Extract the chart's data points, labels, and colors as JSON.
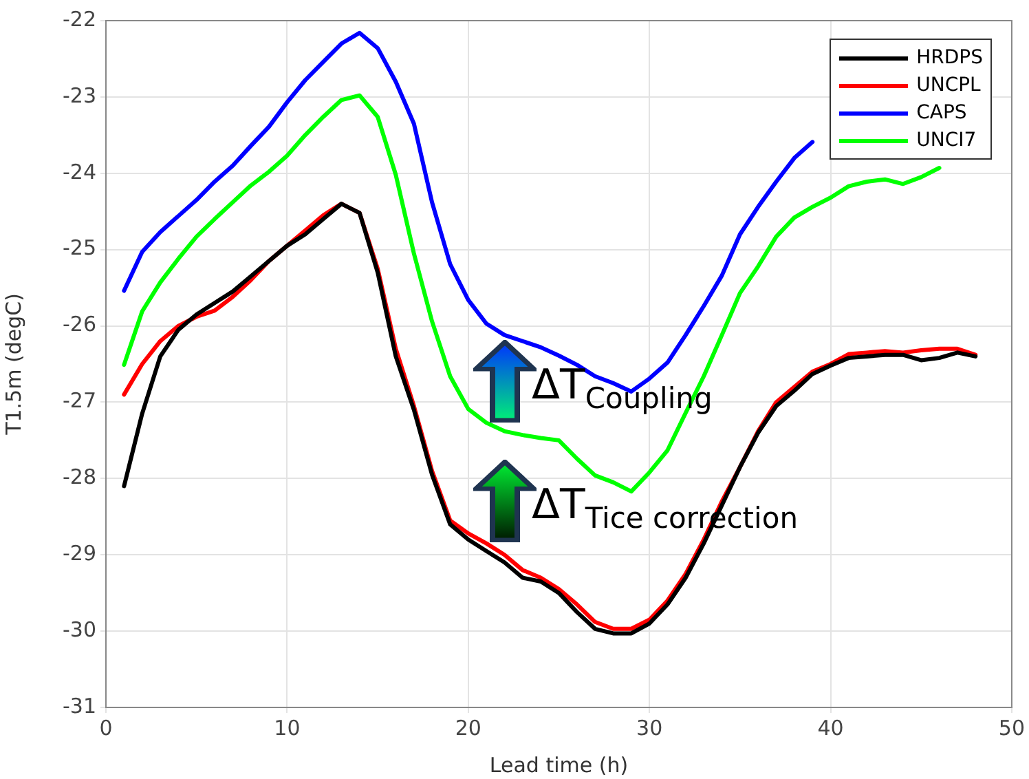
{
  "chart_data": {
    "type": "line",
    "xlabel": "Lead time (h)",
    "ylabel": "T1.5m (degC)",
    "x": [
      1,
      2,
      3,
      4,
      5,
      6,
      7,
      8,
      9,
      10,
      11,
      12,
      13,
      14,
      15,
      16,
      17,
      18,
      19,
      20,
      21,
      22,
      23,
      24,
      25,
      26,
      27,
      28,
      29,
      30,
      31,
      32,
      33,
      34,
      35,
      36,
      37,
      38,
      39,
      40,
      41,
      42,
      43,
      44,
      45,
      46,
      47,
      48
    ],
    "series": [
      {
        "name": "HRDPS",
        "color": "#000000",
        "values": [
          -28.1,
          -27.15,
          -26.4,
          -26.05,
          -25.85,
          -25.7,
          -25.55,
          -25.35,
          -25.15,
          -24.95,
          -24.8,
          -24.6,
          -24.4,
          -24.52,
          -25.3,
          -26.4,
          -27.1,
          -27.95,
          -28.6,
          -28.8,
          -28.95,
          -29.1,
          -29.3,
          -29.35,
          -29.5,
          -29.75,
          -29.97,
          -30.03,
          -30.03,
          -29.9,
          -29.65,
          -29.3,
          -28.85,
          -28.35,
          -27.85,
          -27.4,
          -27.05,
          -26.85,
          -26.63,
          -26.52,
          -26.42,
          -26.4,
          -26.38,
          -26.38,
          -26.45,
          -26.42,
          -26.35,
          -26.4
        ]
      },
      {
        "name": "UNCPL",
        "color": "#ff0000",
        "values": [
          -26.9,
          -26.5,
          -26.2,
          -26.0,
          -25.88,
          -25.8,
          -25.62,
          -25.4,
          -25.15,
          -24.95,
          -24.75,
          -24.55,
          -24.4,
          -24.52,
          -25.25,
          -26.3,
          -27.05,
          -27.9,
          -28.55,
          -28.72,
          -28.85,
          -29.0,
          -29.2,
          -29.3,
          -29.45,
          -29.65,
          -29.88,
          -29.97,
          -29.97,
          -29.85,
          -29.6,
          -29.25,
          -28.8,
          -28.3,
          -27.85,
          -27.38,
          -27.0,
          -26.8,
          -26.6,
          -26.5,
          -26.37,
          -26.35,
          -26.33,
          -26.35,
          -26.32,
          -26.3,
          -26.3,
          -26.38
        ]
      },
      {
        "name": "CAPS",
        "color": "#0000ff",
        "values": [
          -25.54,
          -25.03,
          -24.77,
          -24.56,
          -24.35,
          -24.11,
          -23.9,
          -23.64,
          -23.39,
          -23.07,
          -22.78,
          -22.54,
          -22.3,
          -22.16,
          -22.36,
          -22.8,
          -23.35,
          -24.38,
          -25.19,
          -25.66,
          -25.97,
          -26.12,
          -26.2,
          -26.28,
          -26.39,
          -26.51,
          -26.66,
          -26.75,
          -26.86,
          -26.69,
          -26.48,
          -26.12,
          -25.74,
          -25.34,
          -24.8,
          -24.44,
          -24.11,
          -23.8,
          -23.59,
          null,
          null,
          null,
          null,
          null,
          null,
          null,
          null,
          null
        ]
      },
      {
        "name": "UNCI7",
        "color": "#00ff00",
        "values": [
          -26.51,
          -25.81,
          -25.43,
          -25.12,
          -24.83,
          -24.6,
          -24.38,
          -24.16,
          -23.98,
          -23.77,
          -23.5,
          -23.26,
          -23.04,
          -22.98,
          -23.26,
          -24.02,
          -25.05,
          -25.94,
          -26.66,
          -27.09,
          -27.27,
          -27.38,
          -27.43,
          -27.47,
          -27.5,
          -27.74,
          -27.96,
          -28.05,
          -28.17,
          -27.92,
          -27.63,
          -27.14,
          -26.66,
          -26.12,
          -25.57,
          -25.22,
          -24.83,
          -24.58,
          -24.44,
          -24.32,
          -24.17,
          -24.11,
          -24.08,
          -24.14,
          -24.05,
          -23.93,
          null,
          null
        ]
      }
    ],
    "xlim": [
      0,
      50
    ],
    "xticks": [
      0,
      10,
      20,
      30,
      40,
      50
    ],
    "ylim": [
      -31,
      -22
    ],
    "yticks": [
      -31,
      -30,
      -29,
      -28,
      -27,
      -26,
      -25,
      -24,
      -23,
      -22
    ],
    "grid": true,
    "legend": "top right",
    "marker": "none",
    "line_style": "solid",
    "annotations": [
      "ΔT$_{Coupling}$",
      "ΔT$_{Tice correction}$"
    ]
  }
}
